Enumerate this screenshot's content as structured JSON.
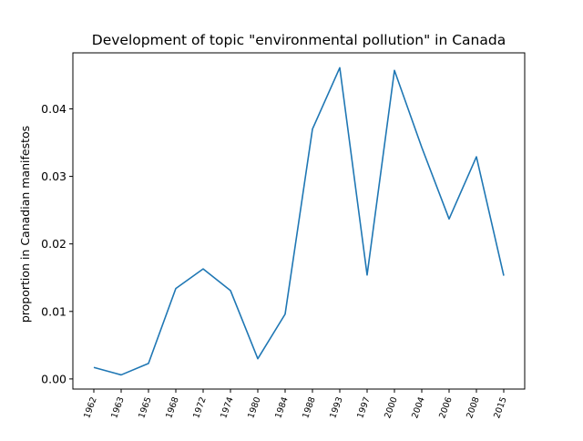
{
  "chart_data": {
    "type": "line",
    "title": "Development of topic \"environmental pollution\" in Canada",
    "xlabel": "",
    "ylabel": "proportion in Canadian manifestos",
    "x": [
      "1962",
      "1963",
      "1965",
      "1968",
      "1972",
      "1974",
      "1980",
      "1984",
      "1988",
      "1993",
      "1997",
      "2000",
      "2004",
      "2006",
      "2008",
      "2015"
    ],
    "series": [
      {
        "values": [
          0.0017,
          0.0006,
          0.0023,
          0.0134,
          0.0163,
          0.0131,
          0.003,
          0.0096,
          0.037,
          0.0461,
          0.0154,
          0.0457,
          0.0343,
          0.0237,
          0.0329,
          0.0153
        ],
        "color": "#1f77b4"
      }
    ],
    "yticks": [
      "0.00",
      "0.01",
      "0.02",
      "0.03",
      "0.04"
    ],
    "ylim": [
      -0.0015,
      0.0483
    ],
    "grid": false
  }
}
